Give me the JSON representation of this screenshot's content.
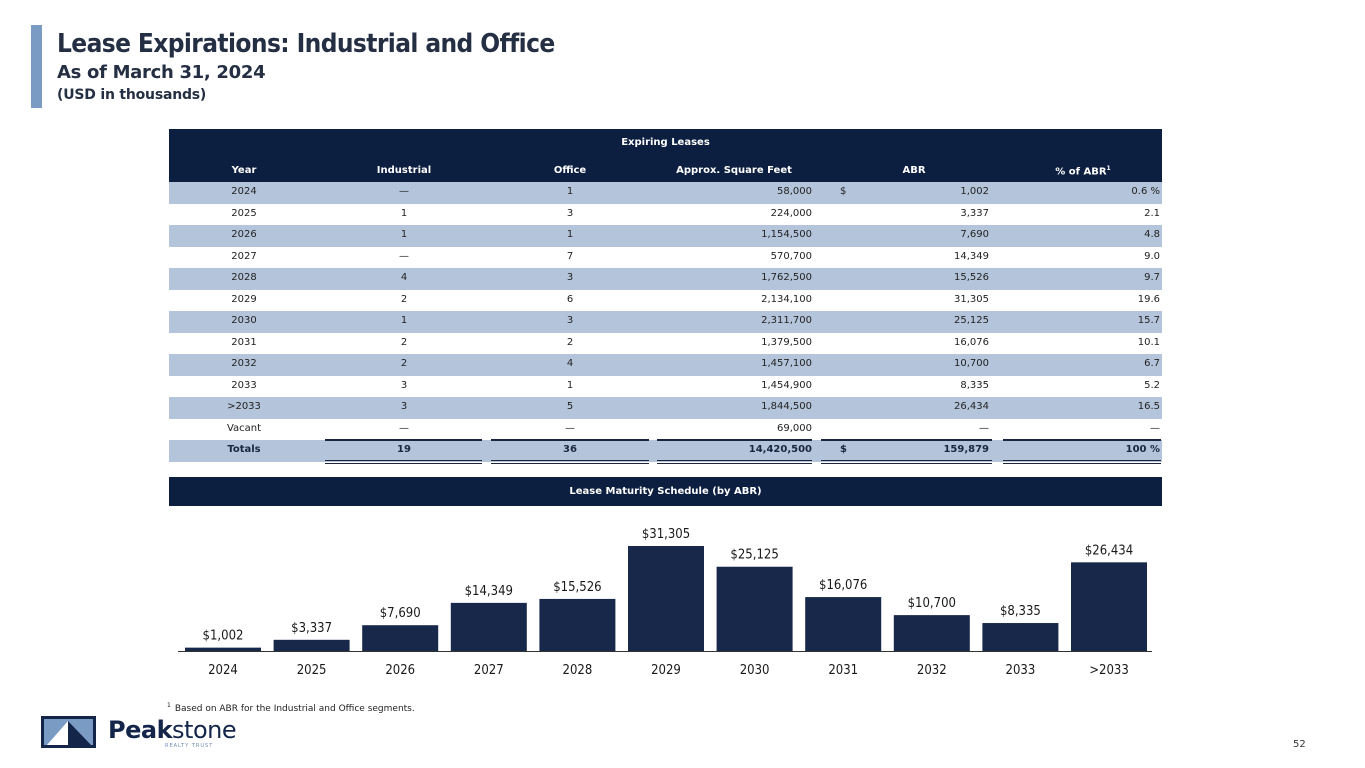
{
  "header": {
    "title": "Lease Expirations: Industrial and Office",
    "subtitle": "As of March 31, 2024",
    "units": "(USD in thousands)"
  },
  "table": {
    "group_title": "Expiring Leases",
    "columns": [
      "Year",
      "Industrial",
      "Office",
      "Approx. Square Feet",
      "ABR",
      "% of ABR"
    ],
    "pct_footnote_marker": "1",
    "rows": [
      {
        "year": "2024",
        "industrial": "—",
        "office": "1",
        "sqft": "58,000",
        "dollar": "$",
        "abr": "1,002",
        "pct": "0.6 %"
      },
      {
        "year": "2025",
        "industrial": "1",
        "office": "3",
        "sqft": "224,000",
        "dollar": "",
        "abr": "3,337",
        "pct": "2.1"
      },
      {
        "year": "2026",
        "industrial": "1",
        "office": "1",
        "sqft": "1,154,500",
        "dollar": "",
        "abr": "7,690",
        "pct": "4.8"
      },
      {
        "year": "2027",
        "industrial": "—",
        "office": "7",
        "sqft": "570,700",
        "dollar": "",
        "abr": "14,349",
        "pct": "9.0"
      },
      {
        "year": "2028",
        "industrial": "4",
        "office": "3",
        "sqft": "1,762,500",
        "dollar": "",
        "abr": "15,526",
        "pct": "9.7"
      },
      {
        "year": "2029",
        "industrial": "2",
        "office": "6",
        "sqft": "2,134,100",
        "dollar": "",
        "abr": "31,305",
        "pct": "19.6"
      },
      {
        "year": "2030",
        "industrial": "1",
        "office": "3",
        "sqft": "2,311,700",
        "dollar": "",
        "abr": "25,125",
        "pct": "15.7"
      },
      {
        "year": "2031",
        "industrial": "2",
        "office": "2",
        "sqft": "1,379,500",
        "dollar": "",
        "abr": "16,076",
        "pct": "10.1"
      },
      {
        "year": "2032",
        "industrial": "2",
        "office": "4",
        "sqft": "1,457,100",
        "dollar": "",
        "abr": "10,700",
        "pct": "6.7"
      },
      {
        "year": "2033",
        "industrial": "3",
        "office": "1",
        "sqft": "1,454,900",
        "dollar": "",
        "abr": "8,335",
        "pct": "5.2"
      },
      {
        "year": ">2033",
        "industrial": "3",
        "office": "5",
        "sqft": "1,844,500",
        "dollar": "",
        "abr": "26,434",
        "pct": "16.5"
      },
      {
        "year": "Vacant",
        "industrial": "—",
        "office": "—",
        "sqft": "69,000",
        "dollar": "",
        "abr": "—",
        "pct": "—"
      }
    ],
    "totals": {
      "year": "Totals",
      "industrial": "19",
      "office": "36",
      "sqft": "14,420,500",
      "dollar": "$",
      "abr": "159,879",
      "pct": "100 %"
    }
  },
  "chart_data": {
    "type": "bar",
    "title": "Lease Maturity Schedule (by ABR)",
    "categories": [
      "2024",
      "2025",
      "2026",
      "2027",
      "2028",
      "2029",
      "2030",
      "2031",
      "2032",
      "2033",
      ">2033"
    ],
    "values": [
      1002,
      3337,
      7690,
      14349,
      15526,
      31305,
      25125,
      16076,
      10700,
      8335,
      26434
    ],
    "data_labels": [
      "$1,002",
      "$3,337",
      "$7,690",
      "$14,349",
      "$15,526",
      "$31,305",
      "$25,125",
      "$16,076",
      "$10,700",
      "$8,335",
      "$26,434"
    ],
    "xlabel": "",
    "ylabel": "",
    "ylim": [
      0,
      31305
    ],
    "grid": false,
    "legend": "none",
    "colors": {
      "bar": "#17284a"
    }
  },
  "footnote": {
    "marker": "1",
    "text": "Based on ABR for the Industrial and Office segments."
  },
  "logo": {
    "name_bold": "Peak",
    "name_regular": "stone",
    "tagline": "REALTY TRUST"
  },
  "page_number": "52"
}
